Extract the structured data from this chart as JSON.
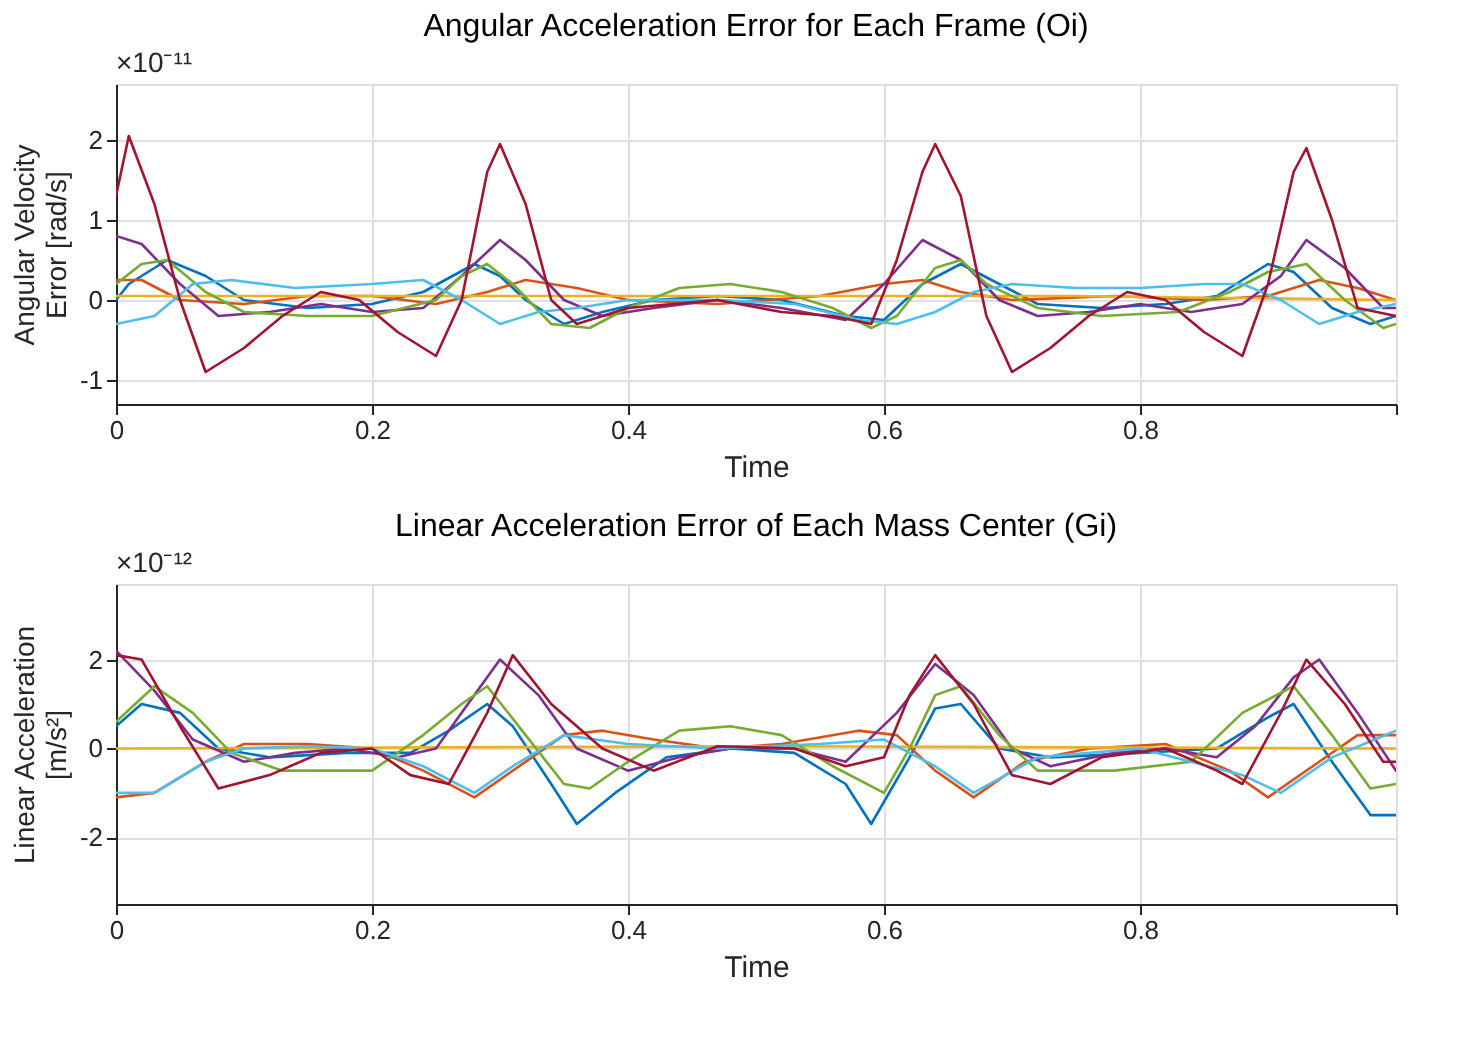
{
  "chart_data": [
    {
      "type": "line",
      "title": "Angular Acceleration Error for Each Frame (Oi)",
      "xlabel": "Time",
      "ylabel": "Angular Velocity Error [rad/s]",
      "annotations": [
        "×10⁻¹¹"
      ],
      "xlim": [
        0,
        1
      ],
      "xticks": [
        0,
        0.2,
        0.4,
        0.6,
        0.8,
        {
          "value": 1,
          "label": null
        }
      ],
      "ylim": [
        -1.3,
        2.7
      ],
      "yticks": [
        -1,
        0,
        1,
        2
      ],
      "grid": true,
      "legend": false,
      "line_style": "solid",
      "marker": "none",
      "series": [
        {
          "color": "#0072bd",
          "x": [
            0,
            0.01,
            0.04,
            0.07,
            0.1,
            0.15,
            0.2,
            0.24,
            0.28,
            0.3,
            0.32,
            0.35,
            0.38,
            0.42,
            0.47,
            0.52,
            0.57,
            0.6,
            0.63,
            0.66,
            0.69,
            0.72,
            0.77,
            0.82,
            0.86,
            0.9,
            0.92,
            0.95,
            0.98,
            1.0
          ],
          "values": [
            0.0,
            0.2,
            0.5,
            0.3,
            0.0,
            -0.1,
            -0.05,
            0.1,
            0.45,
            0.3,
            0.0,
            -0.3,
            -0.15,
            0.0,
            0.05,
            0.0,
            -0.2,
            -0.25,
            0.2,
            0.45,
            0.2,
            -0.05,
            -0.1,
            -0.05,
            0.05,
            0.45,
            0.35,
            -0.1,
            -0.3,
            -0.2
          ]
        },
        {
          "color": "#d95319",
          "x": [
            0,
            0.02,
            0.05,
            0.1,
            0.15,
            0.2,
            0.25,
            0.29,
            0.32,
            0.36,
            0.4,
            0.47,
            0.55,
            0.6,
            0.63,
            0.66,
            0.7,
            0.78,
            0.85,
            0.9,
            0.94,
            0.97,
            1.0
          ],
          "values": [
            0.25,
            0.25,
            0.0,
            -0.05,
            0.05,
            0.05,
            -0.05,
            0.1,
            0.25,
            0.15,
            0.0,
            -0.05,
            0.05,
            0.2,
            0.25,
            0.1,
            0.0,
            0.05,
            0.0,
            0.05,
            0.25,
            0.15,
            0.0
          ]
        },
        {
          "color": "#edb120",
          "x": [
            0,
            0.25,
            0.5,
            0.75,
            1.0
          ],
          "values": [
            0.05,
            0.05,
            0.05,
            0.05,
            0.0
          ]
        },
        {
          "color": "#7e2f8e",
          "x": [
            0,
            0.02,
            0.05,
            0.08,
            0.12,
            0.16,
            0.2,
            0.24,
            0.27,
            0.3,
            0.32,
            0.35,
            0.38,
            0.42,
            0.47,
            0.52,
            0.57,
            0.6,
            0.63,
            0.66,
            0.69,
            0.72,
            0.76,
            0.8,
            0.84,
            0.88,
            0.91,
            0.93,
            0.96,
            0.99,
            1.0
          ],
          "values": [
            0.8,
            0.7,
            0.2,
            -0.2,
            -0.15,
            -0.05,
            -0.15,
            -0.1,
            0.3,
            0.75,
            0.5,
            0.0,
            -0.2,
            -0.1,
            0.0,
            -0.1,
            -0.25,
            0.2,
            0.75,
            0.5,
            0.0,
            -0.2,
            -0.15,
            -0.05,
            -0.15,
            -0.05,
            0.3,
            0.75,
            0.4,
            -0.1,
            -0.1
          ]
        },
        {
          "color": "#77ac30",
          "x": [
            0,
            0.02,
            0.04,
            0.07,
            0.1,
            0.15,
            0.2,
            0.25,
            0.27,
            0.29,
            0.31,
            0.34,
            0.37,
            0.4,
            0.44,
            0.48,
            0.52,
            0.56,
            0.59,
            0.61,
            0.64,
            0.66,
            0.68,
            0.72,
            0.77,
            0.83,
            0.87,
            0.9,
            0.93,
            0.96,
            0.99,
            1.0
          ],
          "values": [
            0.2,
            0.45,
            0.5,
            0.1,
            -0.15,
            -0.2,
            -0.2,
            0.0,
            0.3,
            0.45,
            0.2,
            -0.3,
            -0.35,
            -0.1,
            0.15,
            0.2,
            0.1,
            -0.1,
            -0.35,
            -0.2,
            0.4,
            0.5,
            0.2,
            -0.1,
            -0.2,
            -0.15,
            0.1,
            0.35,
            0.45,
            0.0,
            -0.35,
            -0.3
          ]
        },
        {
          "color": "#4dbeee",
          "x": [
            0,
            0.03,
            0.06,
            0.09,
            0.14,
            0.2,
            0.24,
            0.27,
            0.3,
            0.33,
            0.36,
            0.4,
            0.47,
            0.53,
            0.58,
            0.61,
            0.64,
            0.67,
            0.7,
            0.75,
            0.8,
            0.85,
            0.88,
            0.91,
            0.94,
            0.97,
            1.0
          ],
          "values": [
            -0.3,
            -0.2,
            0.2,
            0.25,
            0.15,
            0.2,
            0.25,
            0.0,
            -0.3,
            -0.15,
            -0.1,
            0.0,
            0.0,
            -0.05,
            -0.25,
            -0.3,
            -0.15,
            0.1,
            0.2,
            0.15,
            0.15,
            0.2,
            0.2,
            0.0,
            -0.3,
            -0.15,
            -0.05
          ]
        },
        {
          "color": "#a2142f",
          "x": [
            0,
            0.01,
            0.03,
            0.05,
            0.07,
            0.1,
            0.13,
            0.16,
            0.19,
            0.22,
            0.25,
            0.27,
            0.29,
            0.3,
            0.32,
            0.34,
            0.36,
            0.4,
            0.47,
            0.52,
            0.56,
            0.59,
            0.61,
            0.63,
            0.64,
            0.66,
            0.68,
            0.7,
            0.73,
            0.76,
            0.79,
            0.82,
            0.85,
            0.88,
            0.9,
            0.92,
            0.93,
            0.95,
            0.97,
            1.0
          ],
          "values": [
            1.3,
            2.05,
            1.2,
            0.0,
            -0.9,
            -0.6,
            -0.2,
            0.1,
            0.0,
            -0.4,
            -0.7,
            0.0,
            1.6,
            1.95,
            1.2,
            0.0,
            -0.3,
            -0.1,
            0.0,
            -0.15,
            -0.2,
            -0.3,
            0.5,
            1.6,
            1.95,
            1.3,
            -0.2,
            -0.9,
            -0.6,
            -0.2,
            0.1,
            0.0,
            -0.4,
            -0.7,
            0.2,
            1.6,
            1.9,
            1.0,
            -0.1,
            -0.2
          ]
        }
      ]
    },
    {
      "type": "line",
      "title": "Linear Acceleration Error of Each Mass Center (Gi)",
      "xlabel": "Time",
      "ylabel": "Linear Acceleration [m/s²]",
      "annotations": [
        "×10⁻¹²"
      ],
      "xlim": [
        0,
        1
      ],
      "xticks": [
        0,
        0.2,
        0.4,
        0.6,
        0.8,
        {
          "value": 1,
          "label": null
        }
      ],
      "ylim": [
        -3.5,
        3.7
      ],
      "yticks": [
        -2,
        0,
        2
      ],
      "grid": true,
      "legend": false,
      "line_style": "solid",
      "marker": "none",
      "series": [
        {
          "color": "#0072bd",
          "x": [
            0,
            0.02,
            0.05,
            0.08,
            0.12,
            0.18,
            0.23,
            0.26,
            0.29,
            0.31,
            0.34,
            0.36,
            0.39,
            0.43,
            0.48,
            0.53,
            0.57,
            0.59,
            0.62,
            0.64,
            0.66,
            0.69,
            0.73,
            0.8,
            0.86,
            0.9,
            0.92,
            0.95,
            0.98,
            1.0
          ],
          "values": [
            0.5,
            1.0,
            0.8,
            0.0,
            -0.2,
            -0.1,
            -0.1,
            0.4,
            1.0,
            0.5,
            -0.8,
            -1.7,
            -1.0,
            -0.2,
            0.0,
            -0.1,
            -0.8,
            -1.7,
            -0.2,
            0.9,
            1.0,
            0.0,
            -0.2,
            -0.1,
            0.0,
            0.7,
            1.0,
            -0.3,
            -1.5,
            -1.5
          ]
        },
        {
          "color": "#d95319",
          "x": [
            0,
            0.03,
            0.07,
            0.1,
            0.15,
            0.2,
            0.24,
            0.28,
            0.31,
            0.35,
            0.38,
            0.42,
            0.47,
            0.52,
            0.58,
            0.61,
            0.64,
            0.67,
            0.71,
            0.76,
            0.82,
            0.87,
            0.9,
            0.94,
            0.97,
            1.0
          ],
          "values": [
            -1.1,
            -1.0,
            -0.3,
            0.1,
            0.1,
            0.0,
            -0.5,
            -1.1,
            -0.5,
            0.3,
            0.4,
            0.2,
            0.0,
            0.1,
            0.4,
            0.3,
            -0.5,
            -1.1,
            -0.3,
            0.0,
            0.1,
            -0.5,
            -1.1,
            -0.3,
            0.3,
            0.3
          ]
        },
        {
          "color": "#edb120",
          "x": [
            0,
            0.5,
            1.0
          ],
          "values": [
            0.0,
            0.05,
            0.0
          ]
        },
        {
          "color": "#7e2f8e",
          "x": [
            0,
            0.03,
            0.06,
            0.1,
            0.14,
            0.18,
            0.22,
            0.25,
            0.28,
            0.3,
            0.33,
            0.36,
            0.4,
            0.44,
            0.48,
            0.53,
            0.57,
            0.61,
            0.64,
            0.67,
            0.7,
            0.73,
            0.78,
            0.82,
            0.86,
            0.89,
            0.92,
            0.94,
            0.97,
            1.0
          ],
          "values": [
            2.2,
            1.3,
            0.2,
            -0.3,
            -0.1,
            0.0,
            -0.2,
            0.0,
            1.2,
            2.0,
            1.2,
            0.0,
            -0.5,
            -0.2,
            0.0,
            0.0,
            -0.3,
            0.8,
            1.9,
            1.2,
            0.0,
            -0.4,
            -0.1,
            0.0,
            -0.2,
            0.5,
            1.6,
            2.0,
            0.8,
            -0.5
          ]
        },
        {
          "color": "#77ac30",
          "x": [
            0,
            0.03,
            0.06,
            0.09,
            0.13,
            0.2,
            0.24,
            0.27,
            0.29,
            0.32,
            0.35,
            0.37,
            0.4,
            0.44,
            0.48,
            0.52,
            0.56,
            0.6,
            0.62,
            0.64,
            0.66,
            0.69,
            0.72,
            0.78,
            0.84,
            0.88,
            0.92,
            0.95,
            0.98,
            1.0
          ],
          "values": [
            0.6,
            1.4,
            0.8,
            -0.1,
            -0.5,
            -0.5,
            0.3,
            1.0,
            1.4,
            0.3,
            -0.8,
            -0.9,
            -0.3,
            0.4,
            0.5,
            0.3,
            -0.4,
            -1.0,
            0.0,
            1.2,
            1.4,
            0.3,
            -0.5,
            -0.5,
            -0.3,
            0.8,
            1.4,
            0.3,
            -0.9,
            -0.8
          ]
        },
        {
          "color": "#4dbeee",
          "x": [
            0,
            0.03,
            0.07,
            0.1,
            0.15,
            0.2,
            0.24,
            0.28,
            0.31,
            0.35,
            0.4,
            0.47,
            0.55,
            0.6,
            0.64,
            0.67,
            0.72,
            0.8,
            0.88,
            0.91,
            0.95,
            1.0
          ],
          "values": [
            -1.0,
            -1.0,
            -0.3,
            0.0,
            0.05,
            0.0,
            -0.4,
            -1.0,
            -0.4,
            0.3,
            0.1,
            0.0,
            0.1,
            0.2,
            -0.4,
            -1.0,
            -0.2,
            0.0,
            -0.6,
            -1.0,
            -0.2,
            0.4
          ]
        },
        {
          "color": "#a2142f",
          "x": [
            0,
            0.02,
            0.05,
            0.08,
            0.12,
            0.16,
            0.2,
            0.23,
            0.26,
            0.29,
            0.31,
            0.34,
            0.38,
            0.42,
            0.47,
            0.53,
            0.57,
            0.6,
            0.62,
            0.64,
            0.67,
            0.7,
            0.73,
            0.77,
            0.82,
            0.86,
            0.88,
            0.91,
            0.93,
            0.96,
            0.99,
            1.0
          ],
          "values": [
            2.1,
            2.0,
            0.5,
            -0.9,
            -0.6,
            -0.1,
            0.0,
            -0.6,
            -0.8,
            0.8,
            2.1,
            1.0,
            0.0,
            -0.5,
            0.05,
            0.0,
            -0.4,
            -0.2,
            1.2,
            2.1,
            1.0,
            -0.6,
            -0.8,
            -0.2,
            0.0,
            -0.5,
            -0.8,
            0.8,
            2.0,
            1.0,
            -0.3,
            -0.3
          ]
        }
      ]
    }
  ]
}
